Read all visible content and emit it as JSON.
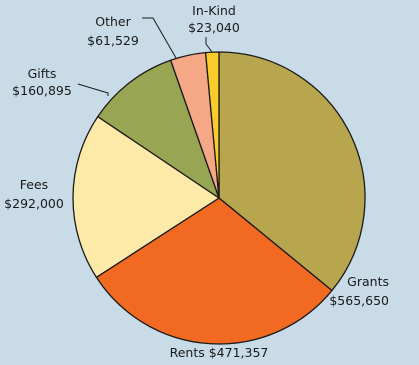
{
  "chart_data": {
    "type": "pie",
    "title": "",
    "background": "#c8dbe6",
    "slices": [
      {
        "name": "Grants",
        "value": 565650,
        "value_label": "$565,650",
        "color": "#b8a64e"
      },
      {
        "name": "Rents",
        "value": 471357,
        "value_label": "$471,357",
        "color": "#f26a22"
      },
      {
        "name": "Fees",
        "value": 292000,
        "value_label": "$292,000",
        "color": "#fdeaa8"
      },
      {
        "name": "Gifts",
        "value": 160895,
        "value_label": "$160,895",
        "color": "#98a653"
      },
      {
        "name": "Other",
        "value": 61529,
        "value_label": "$61,529",
        "color": "#f6a786"
      },
      {
        "name": "In-Kind",
        "value": 23040,
        "value_label": "$23,040",
        "color": "#f9cc2c"
      }
    ]
  }
}
